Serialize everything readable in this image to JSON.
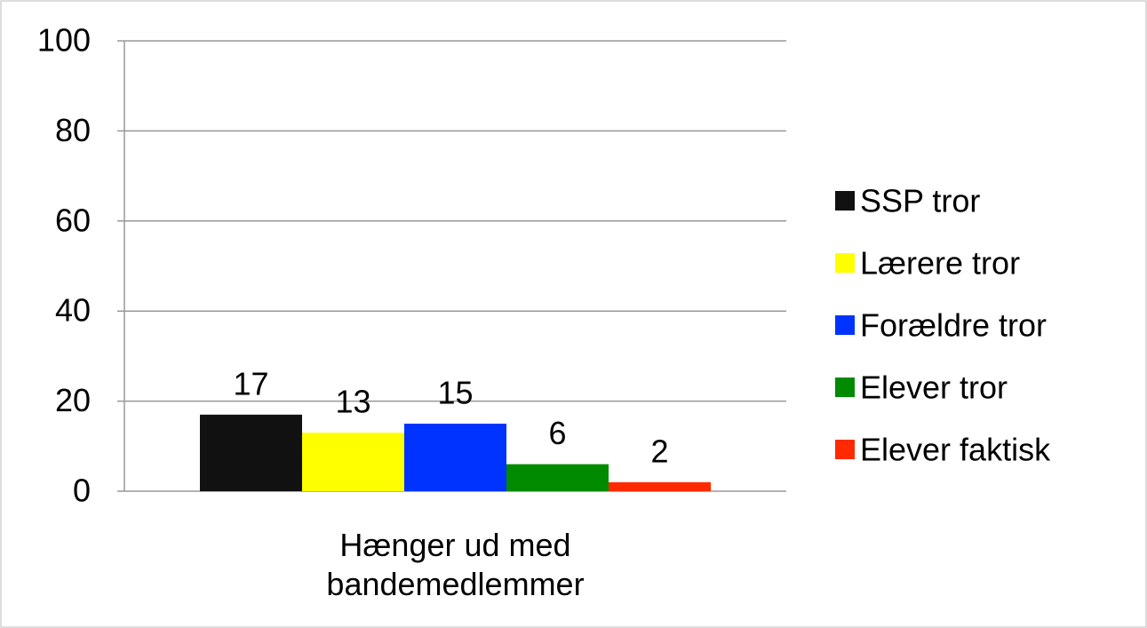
{
  "chart_data": {
    "type": "bar",
    "categories": [
      "Hænger ud med bandemedlemmer"
    ],
    "series": [
      {
        "name": "SSP tror",
        "color": "#111111",
        "values": [
          17
        ]
      },
      {
        "name": "Lærere tror",
        "color": "#ffff00",
        "values": [
          13
        ]
      },
      {
        "name": "Forældre tror",
        "color": "#0033ff",
        "values": [
          15
        ]
      },
      {
        "name": "Elever tror",
        "color": "#008a00",
        "values": [
          6
        ]
      },
      {
        "name": "Elever faktisk",
        "color": "#ff2a00",
        "values": [
          2
        ]
      }
    ],
    "ylim": [
      0,
      100
    ],
    "yticks": [
      0,
      20,
      40,
      60,
      80,
      100
    ],
    "grid": true,
    "legend": "right"
  }
}
